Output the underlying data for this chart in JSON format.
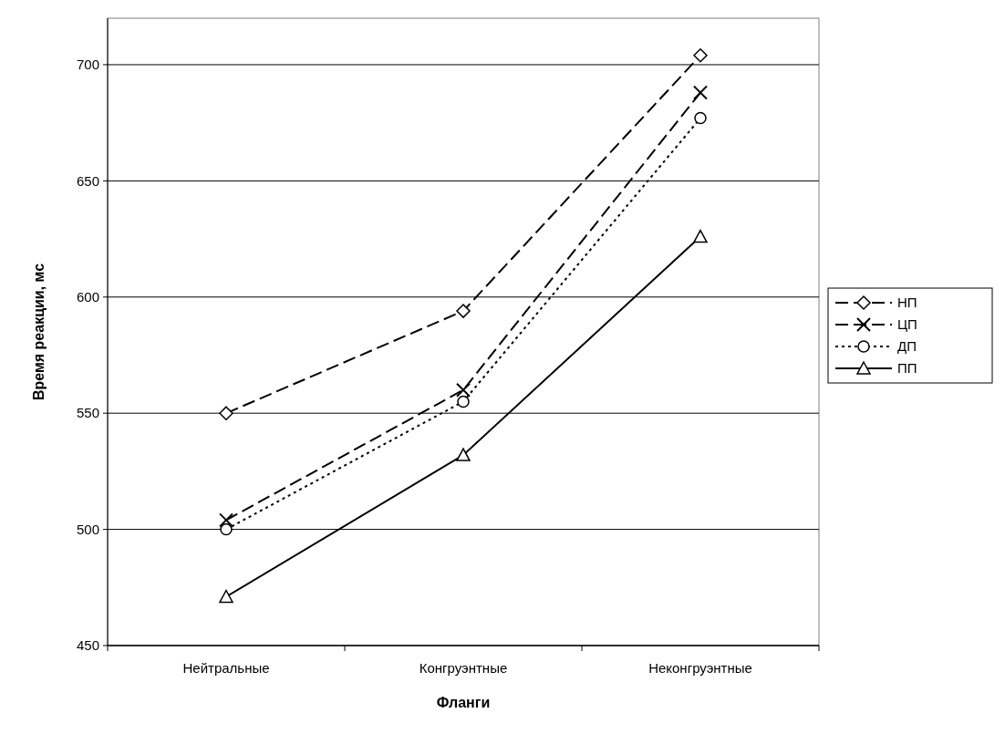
{
  "chart_data": {
    "type": "line",
    "xlabel": "Фланги",
    "ylabel": "Время реакции, мс",
    "categories": [
      "Нейтральные",
      "Конгруэнтные",
      "Неконгруэнтные"
    ],
    "series": [
      {
        "name": "НП",
        "color": "#000000",
        "values": [
          550,
          594,
          704
        ],
        "marker": "diamond",
        "line_style": "dashed"
      },
      {
        "name": "ЦП",
        "color": "#000000",
        "values": [
          504,
          560,
          688
        ],
        "marker": "cross",
        "line_style": "dashed"
      },
      {
        "name": "ДП",
        "color": "#000000",
        "values": [
          500,
          555,
          677
        ],
        "marker": "circle",
        "line_style": "dotted"
      },
      {
        "name": "ПП",
        "color": "#000000",
        "values": [
          471,
          532,
          626
        ],
        "marker": "triangle",
        "line_style": "solid"
      }
    ],
    "ylim": [
      450,
      720
    ],
    "yticks": [
      450,
      500,
      550,
      600,
      650,
      700
    ],
    "grid": "y",
    "legend": "right"
  }
}
